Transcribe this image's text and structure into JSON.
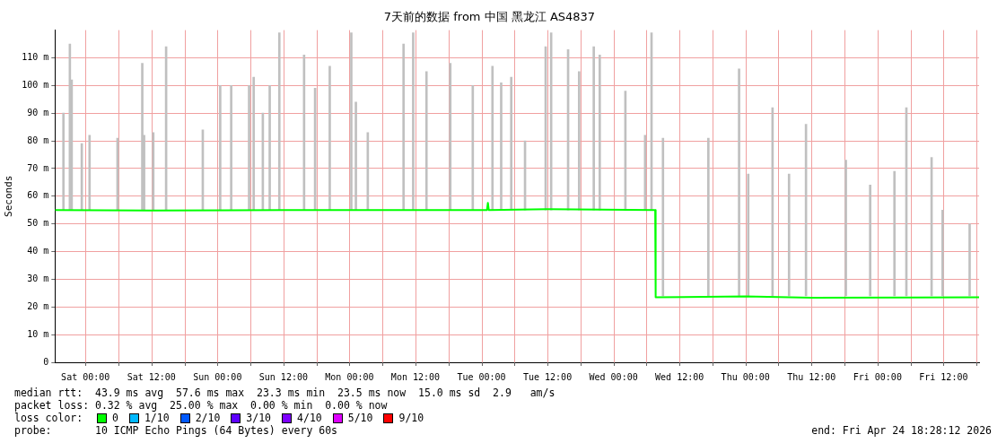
{
  "chart_data": {
    "type": "bar",
    "title": "7天前的数据 from 中国 黑龙江 AS4837",
    "ylabel": "Seconds",
    "xlim": [
      "2026-04-17T18:28",
      "2026-04-24T18:28"
    ],
    "xticks": [
      {
        "value": "2026-04-18T00:00",
        "label": "Sat 00:00"
      },
      {
        "value": "2026-04-18T06:00",
        "label": null
      },
      {
        "value": "2026-04-18T12:00",
        "label": "Sat 12:00"
      },
      {
        "value": "2026-04-18T18:00",
        "label": null
      },
      {
        "value": "2026-04-19T00:00",
        "label": "Sun 00:00"
      },
      {
        "value": "2026-04-19T06:00",
        "label": null
      },
      {
        "value": "2026-04-19T12:00",
        "label": "Sun 12:00"
      },
      {
        "value": "2026-04-19T18:00",
        "label": null
      },
      {
        "value": "2026-04-20T00:00",
        "label": "Mon 00:00"
      },
      {
        "value": "2026-04-20T06:00",
        "label": null
      },
      {
        "value": "2026-04-20T12:00",
        "label": "Mon 12:00"
      },
      {
        "value": "2026-04-20T18:00",
        "label": null
      },
      {
        "value": "2026-04-21T00:00",
        "label": "Tue 00:00"
      },
      {
        "value": "2026-04-21T06:00",
        "label": null
      },
      {
        "value": "2026-04-21T12:00",
        "label": "Tue 12:00"
      },
      {
        "value": "2026-04-21T18:00",
        "label": null
      },
      {
        "value": "2026-04-22T00:00",
        "label": "Wed 00:00"
      },
      {
        "value": "2026-04-22T06:00",
        "label": null
      },
      {
        "value": "2026-04-22T12:00",
        "label": "Wed 12:00"
      },
      {
        "value": "2026-04-22T18:00",
        "label": null
      },
      {
        "value": "2026-04-23T00:00",
        "label": "Thu 00:00"
      },
      {
        "value": "2026-04-23T06:00",
        "label": null
      },
      {
        "value": "2026-04-23T12:00",
        "label": "Thu 12:00"
      },
      {
        "value": "2026-04-23T18:00",
        "label": null
      },
      {
        "value": "2026-04-24T00:00",
        "label": "Fri 00:00"
      },
      {
        "value": "2026-04-24T06:00",
        "label": null
      },
      {
        "value": "2026-04-24T12:00",
        "label": "Fri 12:00"
      },
      {
        "value": "2026-04-24T18:00",
        "label": null
      }
    ],
    "ylim": [
      0,
      120
    ],
    "yticks": [
      0,
      {
        "value": 10,
        "label": "10 m"
      },
      {
        "value": 20,
        "label": "20 m"
      },
      {
        "value": 30,
        "label": "30 m"
      },
      {
        "value": 40,
        "label": "40 m"
      },
      {
        "value": 50,
        "label": "50 m"
      },
      {
        "value": 60,
        "label": "60 m"
      },
      {
        "value": 70,
        "label": "70 m"
      },
      {
        "value": 80,
        "label": "80 m"
      },
      {
        "value": 90,
        "label": "90 m"
      },
      {
        "value": 100,
        "label": "100 m"
      },
      {
        "value": 110,
        "label": "110 m"
      }
    ],
    "grid": true,
    "legend": false,
    "marker": "none",
    "line_style": "solid",
    "series": [
      {
        "color": "#c0c0c0",
        "base": [
          55,
          55,
          55,
          55,
          55,
          55,
          55,
          55,
          55,
          55,
          55,
          55,
          55,
          55,
          55,
          55,
          55,
          55,
          55,
          55,
          55,
          55,
          55,
          55,
          55,
          55,
          55,
          55,
          55,
          55,
          55,
          55,
          55,
          55,
          55,
          55,
          55,
          55,
          55,
          55,
          55,
          55,
          24,
          24,
          24,
          24,
          24,
          24,
          24,
          24,
          24,
          24,
          24,
          24,
          24,
          24
        ],
        "x": [
          "2026-04-17T20:00",
          "2026-04-17T21:10",
          "2026-04-17T21:30",
          "2026-04-17T23:20",
          "2026-04-18T00:45",
          "2026-04-18T05:50",
          "2026-04-18T10:20",
          "2026-04-18T10:40",
          "2026-04-18T12:20",
          "2026-04-18T14:40",
          "2026-04-18T21:20",
          "2026-04-19T00:30",
          "2026-04-19T02:30",
          "2026-04-19T05:45",
          "2026-04-19T06:35",
          "2026-04-19T08:15",
          "2026-04-19T09:30",
          "2026-04-19T11:15",
          "2026-04-19T15:45",
          "2026-04-19T17:45",
          "2026-04-19T20:25",
          "2026-04-20T00:20",
          "2026-04-20T01:10",
          "2026-04-20T03:20",
          "2026-04-20T09:50",
          "2026-04-20T11:35",
          "2026-04-20T14:00",
          "2026-04-20T18:20",
          "2026-04-20T22:25",
          "2026-04-21T02:00",
          "2026-04-21T03:35",
          "2026-04-21T05:25",
          "2026-04-21T07:55",
          "2026-04-21T11:40",
          "2026-04-21T12:40",
          "2026-04-21T15:45",
          "2026-04-21T17:45",
          "2026-04-21T20:25",
          "2026-04-21T21:30",
          "2026-04-22T02:10",
          "2026-04-22T05:45",
          "2026-04-22T06:55",
          "2026-04-22T09:00",
          "2026-04-22T17:15",
          "2026-04-22T22:50",
          "2026-04-23T00:30",
          "2026-04-23T04:55",
          "2026-04-23T07:55",
          "2026-04-23T11:00",
          "2026-04-23T18:15",
          "2026-04-23T22:40",
          "2026-04-24T03:05",
          "2026-04-24T05:15",
          "2026-04-24T09:50",
          "2026-04-24T11:50",
          "2026-04-24T16:45"
        ],
        "values": [
          35,
          60,
          47,
          24,
          27,
          26,
          53,
          27,
          28,
          59,
          29,
          45,
          45,
          45,
          48,
          35,
          45,
          64,
          56,
          44,
          52,
          64,
          39,
          28,
          60,
          64,
          50,
          53,
          45,
          52,
          46,
          48,
          25,
          59,
          64,
          58,
          50,
          59,
          56,
          43,
          27,
          64,
          57,
          57,
          82,
          44,
          68,
          44,
          62,
          49,
          40,
          45,
          68,
          50,
          31,
          26
        ]
      },
      {
        "type": "line",
        "color": "#00ff00",
        "x": [
          "2026-04-17T18:28",
          "2026-04-18T12:00",
          "2026-04-19T12:00",
          "2026-04-20T12:00",
          "2026-04-21T01:00",
          "2026-04-21T01:10",
          "2026-04-21T01:20",
          "2026-04-21T12:00",
          "2026-04-22T07:35",
          "2026-04-22T07:40",
          "2026-04-23T00:00",
          "2026-04-23T12:00",
          "2026-04-24T18:28"
        ],
        "values": [
          55,
          54.8,
          55,
          55,
          55,
          57.6,
          55,
          55.3,
          55,
          23.5,
          23.8,
          23.3,
          23.5
        ]
      }
    ],
    "annotations": [
      "median rtt:  43.9 ms avg  57.6 ms max  23.3 ms min  23.5 ms now  15.0 ms sd  2.9   am/s",
      "packet loss: 0.32 % avg  25.00 % max  0.00 % min  0.00 % now",
      "loss color:",
      "0",
      "1/10",
      "2/10",
      "3/10",
      "4/10",
      "5/10",
      "9/10",
      "probe:       10 ICMP Echo Pings (64 Bytes) every 60s",
      "end: Fri Apr 24 18:28:12 2026"
    ]
  }
}
